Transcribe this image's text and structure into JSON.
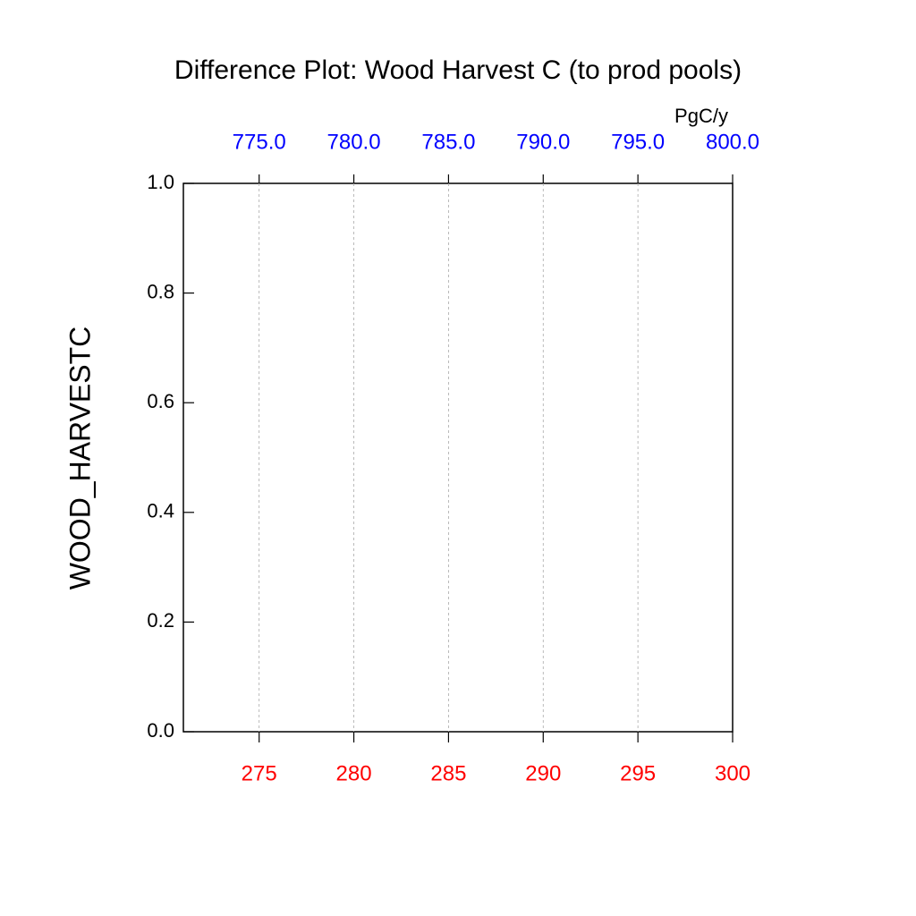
{
  "chart_data": {
    "type": "line",
    "title": "Difference Plot: Wood Harvest C (to prod pools)",
    "ylabel": "WOOD_HARVESTC",
    "x2label": "PgC/y",
    "xlim": [
      271,
      300
    ],
    "xticks": [
      275,
      280,
      285,
      290,
      295,
      300
    ],
    "xtick_color": "#ff0000",
    "x2lim": [
      771,
      800
    ],
    "x2ticks": [
      {
        "value": 775,
        "label": "775.0"
      },
      {
        "value": 780,
        "label": "780.0"
      },
      {
        "value": 785,
        "label": "785.0"
      },
      {
        "value": 790,
        "label": "790.0"
      },
      {
        "value": 795,
        "label": "795.0"
      },
      {
        "value": 800,
        "label": "800.0"
      }
    ],
    "x2tick_color": "#0000ff",
    "ylim": [
      0,
      1
    ],
    "yticks": [
      {
        "value": 0,
        "label": "0.0"
      },
      0.2,
      0.4,
      0.6,
      0.8,
      {
        "value": 1,
        "label": "1.0"
      }
    ],
    "grid": true
  }
}
